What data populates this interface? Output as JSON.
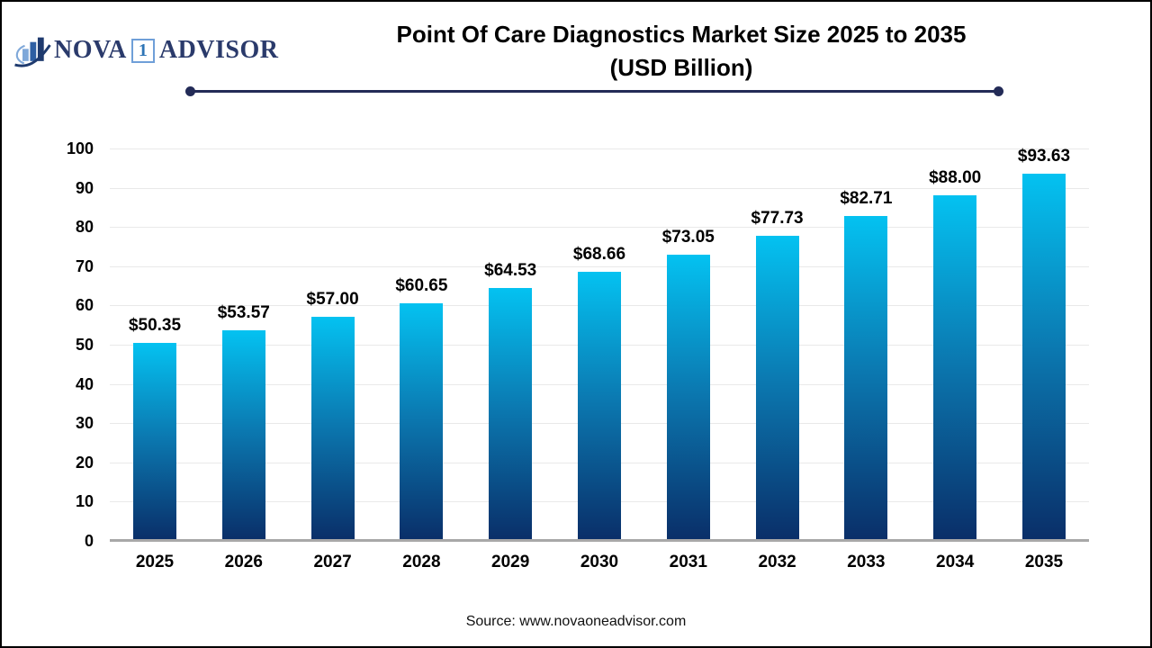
{
  "brand": {
    "logo_text_left": "NOVA",
    "logo_badge": "1",
    "logo_text_right": "ADVISOR",
    "icon": "bar-chart-swoosh-icon",
    "colors": {
      "navy": "#2A3A6B",
      "light_blue": "#7FA8D9",
      "mid_blue": "#2E5FA3"
    }
  },
  "header": {
    "title_line1": "Point Of Care Diagnostics Market Size 2025 to 2035",
    "title_line2": "(USD Billion)",
    "underline_color": "#232B57"
  },
  "footer": {
    "source": "Source: www.novaoneadvisor.com"
  },
  "chart_data": {
    "type": "bar",
    "title": "Point Of Care Diagnostics Market Size 2025 to 2035 (USD Billion)",
    "categories": [
      "2025",
      "2026",
      "2027",
      "2028",
      "2029",
      "2030",
      "2031",
      "2032",
      "2033",
      "2034",
      "2035"
    ],
    "values": [
      50.35,
      53.57,
      57.0,
      60.65,
      64.53,
      68.66,
      73.05,
      77.73,
      82.71,
      88.0,
      93.63
    ],
    "value_labels": [
      "$50.35",
      "$53.57",
      "$57.00",
      "$60.65",
      "$64.53",
      "$68.66",
      "$73.05",
      "$77.73",
      "$82.71",
      "$88.00",
      "$93.63"
    ],
    "xlabel": "",
    "ylabel": "",
    "ylim": [
      0,
      100
    ],
    "yticks": [
      0,
      10,
      20,
      30,
      40,
      50,
      60,
      70,
      80,
      90,
      100
    ],
    "grid": "horizontal",
    "legend": "none",
    "bar_color_top": "#04C2F1",
    "bar_color_mid": "#0B78B0",
    "bar_color_bottom": "#0A2E68",
    "axis_line_color": "#A8A8A8",
    "gridline_color": "#E9E9E9"
  }
}
